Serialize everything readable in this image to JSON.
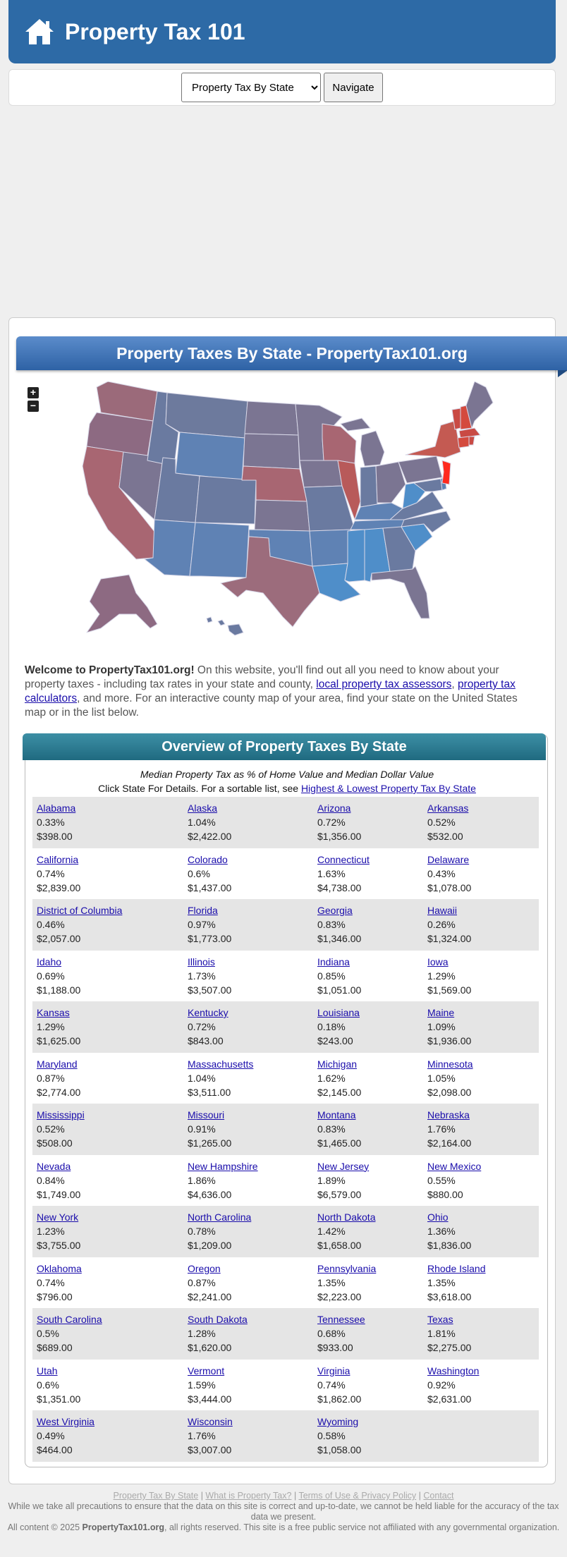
{
  "header": {
    "title": "Property Tax 101"
  },
  "nav": {
    "selected": "Property Tax By State",
    "button": "Navigate"
  },
  "banner": {
    "title": "Property Taxes By State - PropertyTax101.org"
  },
  "map_controls": {
    "zoom_in": "+",
    "zoom_out": "−"
  },
  "welcome": {
    "lead": "Welcome to PropertyTax101.org!",
    "text1": " On this website, you'll find out all you need to know about your property taxes - including tax rates in your state and county, ",
    "link1": "local property tax assessors",
    "text2": ", ",
    "link2": "property tax calculators",
    "text3": ", and more. For an interactive county map of your area, find your state on the United States map or in the list below."
  },
  "overview": {
    "title": "Overview of Property Taxes By State",
    "subtitle": "Median Property Tax as % of Home Value and Median Dollar Value",
    "instruction": "Click State For Details. For a sortable list, see ",
    "link": "Highest & Lowest Property Tax By State"
  },
  "states": [
    {
      "name": "Alabama",
      "pct": "0.33%",
      "amt": "$398.00"
    },
    {
      "name": "Alaska",
      "pct": "1.04%",
      "amt": "$2,422.00"
    },
    {
      "name": "Arizona",
      "pct": "0.72%",
      "amt": "$1,356.00"
    },
    {
      "name": "Arkansas",
      "pct": "0.52%",
      "amt": "$532.00"
    },
    {
      "name": "California",
      "pct": "0.74%",
      "amt": "$2,839.00"
    },
    {
      "name": "Colorado",
      "pct": "0.6%",
      "amt": "$1,437.00"
    },
    {
      "name": "Connecticut",
      "pct": "1.63%",
      "amt": "$4,738.00"
    },
    {
      "name": "Delaware",
      "pct": "0.43%",
      "amt": "$1,078.00"
    },
    {
      "name": "District of Columbia",
      "pct": "0.46%",
      "amt": "$2,057.00"
    },
    {
      "name": "Florida",
      "pct": "0.97%",
      "amt": "$1,773.00"
    },
    {
      "name": "Georgia",
      "pct": "0.83%",
      "amt": "$1,346.00"
    },
    {
      "name": "Hawaii",
      "pct": "0.26%",
      "amt": "$1,324.00"
    },
    {
      "name": "Idaho",
      "pct": "0.69%",
      "amt": "$1,188.00"
    },
    {
      "name": "Illinois",
      "pct": "1.73%",
      "amt": "$3,507.00"
    },
    {
      "name": "Indiana",
      "pct": "0.85%",
      "amt": "$1,051.00"
    },
    {
      "name": "Iowa",
      "pct": "1.29%",
      "amt": "$1,569.00"
    },
    {
      "name": "Kansas",
      "pct": "1.29%",
      "amt": "$1,625.00"
    },
    {
      "name": "Kentucky",
      "pct": "0.72%",
      "amt": "$843.00"
    },
    {
      "name": "Louisiana",
      "pct": "0.18%",
      "amt": "$243.00"
    },
    {
      "name": "Maine",
      "pct": "1.09%",
      "amt": "$1,936.00"
    },
    {
      "name": "Maryland",
      "pct": "0.87%",
      "amt": "$2,774.00"
    },
    {
      "name": "Massachusetts",
      "pct": "1.04%",
      "amt": "$3,511.00"
    },
    {
      "name": "Michigan",
      "pct": "1.62%",
      "amt": "$2,145.00"
    },
    {
      "name": "Minnesota",
      "pct": "1.05%",
      "amt": "$2,098.00"
    },
    {
      "name": "Mississippi",
      "pct": "0.52%",
      "amt": "$508.00"
    },
    {
      "name": "Missouri",
      "pct": "0.91%",
      "amt": "$1,265.00"
    },
    {
      "name": "Montana",
      "pct": "0.83%",
      "amt": "$1,465.00"
    },
    {
      "name": "Nebraska",
      "pct": "1.76%",
      "amt": "$2,164.00"
    },
    {
      "name": "Nevada",
      "pct": "0.84%",
      "amt": "$1,749.00"
    },
    {
      "name": "New Hampshire",
      "pct": "1.86%",
      "amt": "$4,636.00"
    },
    {
      "name": "New Jersey",
      "pct": "1.89%",
      "amt": "$6,579.00"
    },
    {
      "name": "New Mexico",
      "pct": "0.55%",
      "amt": "$880.00"
    },
    {
      "name": "New York",
      "pct": "1.23%",
      "amt": "$3,755.00"
    },
    {
      "name": "North Carolina",
      "pct": "0.78%",
      "amt": "$1,209.00"
    },
    {
      "name": "North Dakota",
      "pct": "1.42%",
      "amt": "$1,658.00"
    },
    {
      "name": "Ohio",
      "pct": "1.36%",
      "amt": "$1,836.00"
    },
    {
      "name": "Oklahoma",
      "pct": "0.74%",
      "amt": "$796.00"
    },
    {
      "name": "Oregon",
      "pct": "0.87%",
      "amt": "$2,241.00"
    },
    {
      "name": "Pennsylvania",
      "pct": "1.35%",
      "amt": "$2,223.00"
    },
    {
      "name": "Rhode Island",
      "pct": "1.35%",
      "amt": "$3,618.00"
    },
    {
      "name": "South Carolina",
      "pct": "0.5%",
      "amt": "$689.00"
    },
    {
      "name": "South Dakota",
      "pct": "1.28%",
      "amt": "$1,620.00"
    },
    {
      "name": "Tennessee",
      "pct": "0.68%",
      "amt": "$933.00"
    },
    {
      "name": "Texas",
      "pct": "1.81%",
      "amt": "$2,275.00"
    },
    {
      "name": "Utah",
      "pct": "0.6%",
      "amt": "$1,351.00"
    },
    {
      "name": "Vermont",
      "pct": "1.59%",
      "amt": "$3,444.00"
    },
    {
      "name": "Virginia",
      "pct": "0.74%",
      "amt": "$1,862.00"
    },
    {
      "name": "Washington",
      "pct": "0.92%",
      "amt": "$2,631.00"
    },
    {
      "name": "West Virginia",
      "pct": "0.49%",
      "amt": "$464.00"
    },
    {
      "name": "Wisconsin",
      "pct": "1.76%",
      "amt": "$3,007.00"
    },
    {
      "name": "Wyoming",
      "pct": "0.58%",
      "amt": "$1,058.00"
    }
  ],
  "footer": {
    "links": [
      "Property Tax By State",
      "What is Property Tax?",
      "Terms of Use & Privacy Policy",
      "Contact"
    ],
    "separator": " | ",
    "disclaimer": "While we take all precautions to ensure that the data on this site is correct and up-to-date, we cannot be held liable for the accuracy of the tax data we present.",
    "copyright_pre": "All content © 2025 ",
    "site": "PropertyTax101.org",
    "copyright_post": ", all rights reserved. This site is a free public service not affiliated with any governmental organization."
  },
  "colors": {
    "header": "#2d6aa6",
    "map_high": "#c94a44",
    "map_mid": "#7b7592",
    "map_low": "#4f8ec9",
    "map_hot": "#ff2a1f"
  }
}
